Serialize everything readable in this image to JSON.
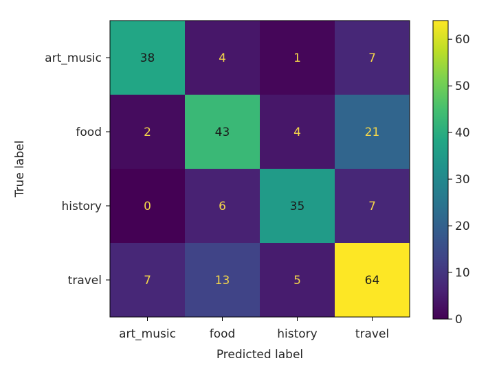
{
  "chart_data": {
    "type": "heatmap",
    "title": "",
    "xlabel": "Predicted label",
    "ylabel": "True label",
    "x_categories": [
      "art_music",
      "food",
      "history",
      "travel"
    ],
    "y_categories": [
      "art_music",
      "food",
      "history",
      "travel"
    ],
    "values": [
      [
        38,
        4,
        1,
        7
      ],
      [
        2,
        43,
        4,
        21
      ],
      [
        0,
        6,
        35,
        7
      ],
      [
        7,
        13,
        5,
        64
      ]
    ],
    "colormap": "viridis",
    "colorbar": {
      "range": [
        0,
        64
      ],
      "ticks": [
        0,
        10,
        20,
        30,
        40,
        50,
        60
      ]
    },
    "text_color_dark": "#1b1b1b",
    "text_color_light": "#f4d64a",
    "grid": false
  }
}
